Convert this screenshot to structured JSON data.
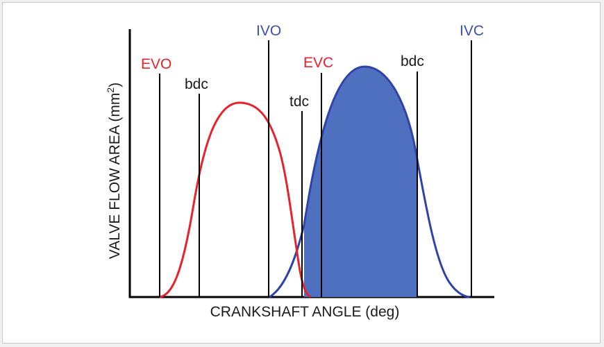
{
  "diagram": {
    "x_axis_label": "CRANKSHAFT ANGLE (deg)",
    "y_axis_label": {
      "text": "VALVE FLOW AREA (mm",
      "superscript": "2",
      "suffix": ")"
    },
    "markers": {
      "evo": "EVO",
      "bdc_1": "bdc",
      "ivo": "IVO",
      "tdc": "tdc",
      "evc": "EVC",
      "bdc_2": "bdc",
      "ivc": "IVC"
    },
    "colors": {
      "exhaust": "#e8212b",
      "intake_line": "#2e42a8",
      "intake_fill": "#4f6fbf",
      "intake_label": "#3c4fb0",
      "exhaust_label": "#e8212b",
      "marker_line": "#000000"
    }
  }
}
